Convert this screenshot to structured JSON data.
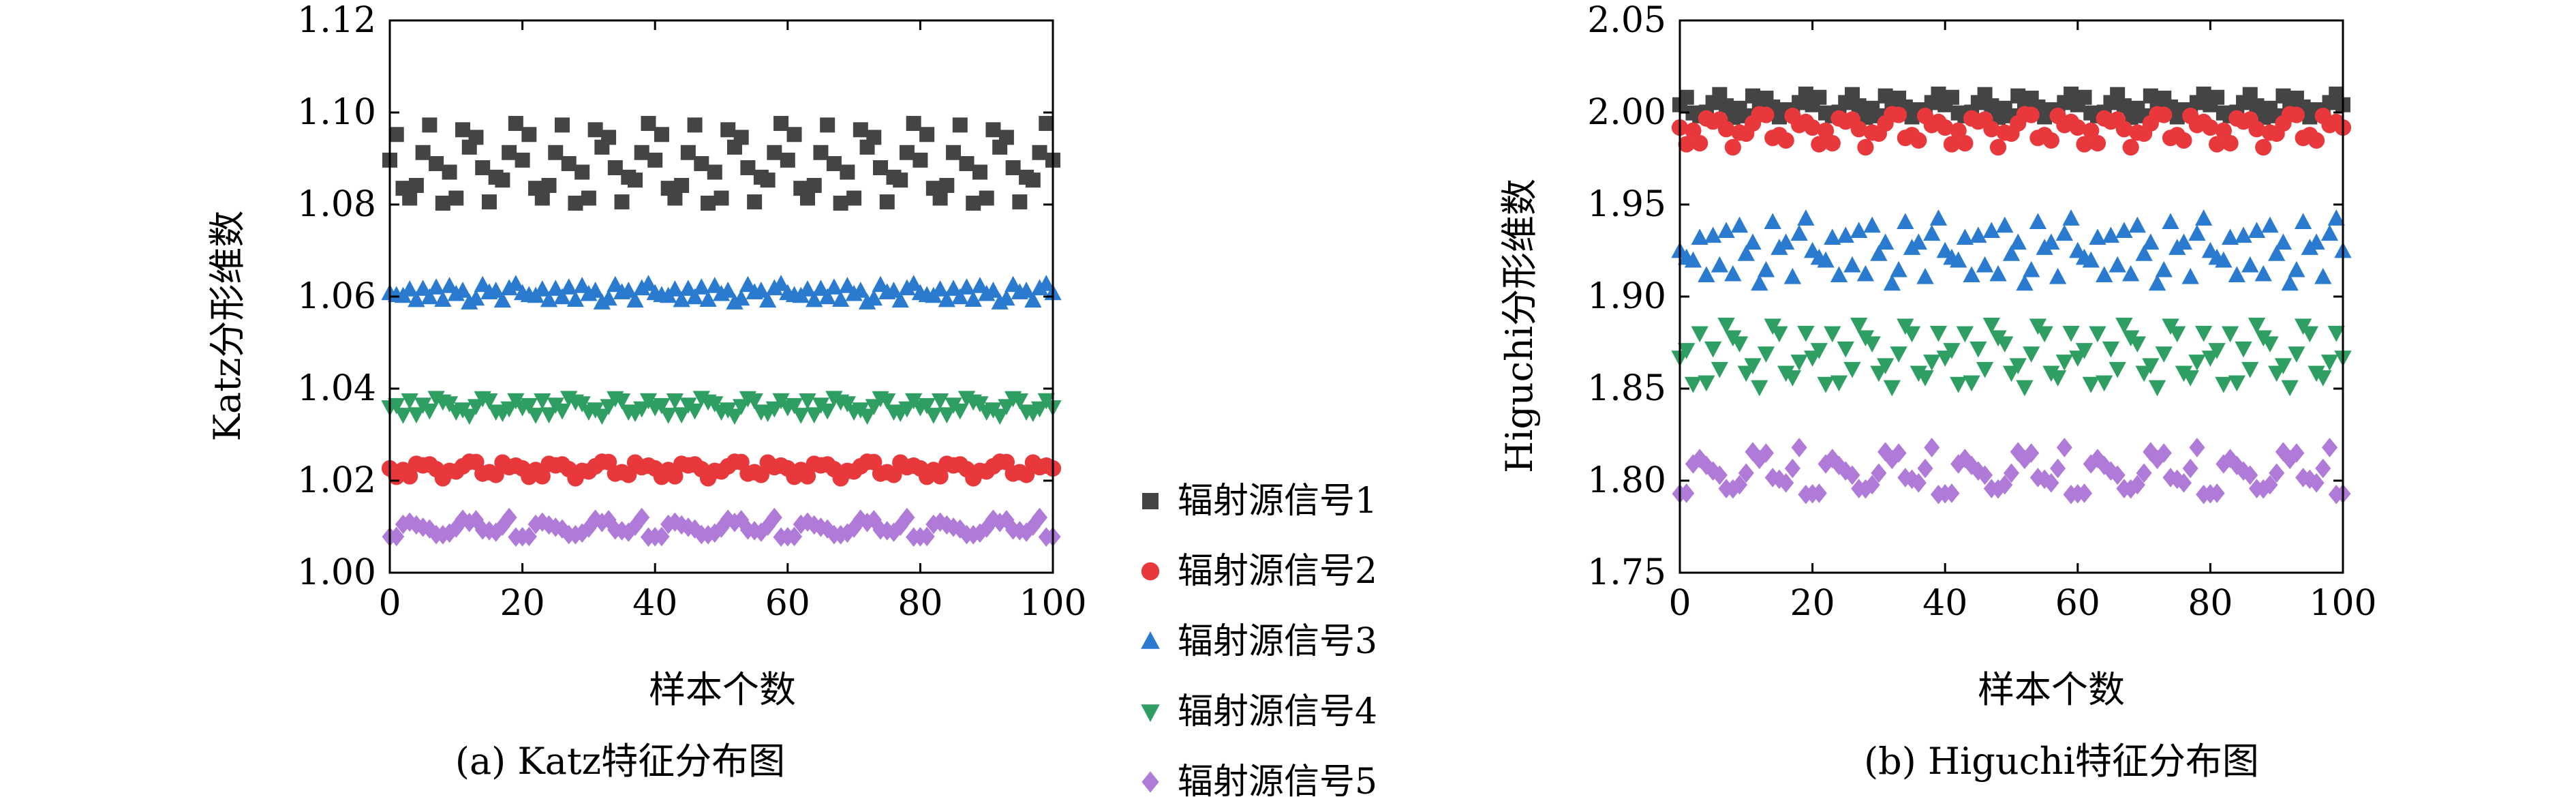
{
  "legend": {
    "placement": "between-charts",
    "items": [
      {
        "label": "辐射源信号1",
        "color": "#444444",
        "marker": "square"
      },
      {
        "label": "辐射源信号2",
        "color": "#e8383b",
        "marker": "circle"
      },
      {
        "label": "辐射源信号3",
        "color": "#2a7bd0",
        "marker": "triangle-up"
      },
      {
        "label": "辐射源信号4",
        "color": "#2e9e62",
        "marker": "triangle-down"
      },
      {
        "label": "辐射源信号5",
        "color": "#b07ad8",
        "marker": "diamond"
      }
    ]
  },
  "chart_data": [
    {
      "type": "scatter",
      "caption": "(a) Katz特征分布图",
      "xlabel": "样本个数",
      "ylabel": "Katz分形维数",
      "xlim": [
        0,
        100
      ],
      "ylim": [
        1.0,
        1.12
      ],
      "xticks": [
        "0",
        "20",
        "40",
        "60",
        "80",
        "100"
      ],
      "yticks": [
        "1.00",
        "1.02",
        "1.04",
        "1.06",
        "1.08",
        "1.10",
        "1.12"
      ],
      "grid": false,
      "series": [
        {
          "name": "辐射源信号1",
          "center": 1.088,
          "spread": 0.011,
          "pattern": [
            0.2,
            -0.6,
            0.9,
            -0.1,
            0.5,
            -0.9,
            0.3,
            0.7,
            -0.4,
            0.1,
            -0.8,
            0.6,
            -0.2,
            1.0,
            -0.5,
            0.4,
            -0.7,
            0.8,
            0.0,
            -0.3
          ]
        },
        {
          "name": "辐射源信号2",
          "center": 1.0225,
          "spread": 0.0022,
          "pattern": [
            0.3,
            -0.5,
            0.8,
            0.1,
            -0.7,
            0.5,
            -0.2,
            0.9,
            -0.4,
            0.2,
            -0.8,
            0.6,
            0.0,
            -0.3,
            0.7,
            -0.6,
            0.4,
            -0.1,
            0.5,
            -0.9
          ]
        },
        {
          "name": "辐射源信号3",
          "center": 1.0605,
          "spread": 0.0025,
          "pattern": [
            -0.2,
            0.6,
            -0.5,
            0.3,
            0.9,
            -0.7,
            0.1,
            0.4,
            -0.3,
            0.8,
            -0.9,
            0.2,
            0.5,
            -0.1,
            -0.6,
            0.7,
            0.0,
            -0.4,
            0.3,
            1.0
          ]
        },
        {
          "name": "辐射源信号4",
          "center": 1.036,
          "spread": 0.0025,
          "pattern": [
            0.1,
            -0.4,
            0.7,
            -0.8,
            0.3,
            0.5,
            -0.2,
            0.9,
            -0.6,
            0.0,
            0.6,
            -0.3,
            0.4,
            -0.9,
            0.8,
            -0.1,
            0.2,
            -0.7,
            1.0,
            -0.5
          ]
        },
        {
          "name": "辐射源信号5",
          "center": 1.0095,
          "spread": 0.0025,
          "pattern": [
            0.4,
            -0.6,
            0.1,
            0.8,
            -0.3,
            -0.8,
            0.5,
            0.2,
            -0.5,
            0.9,
            -0.1,
            0.3,
            -0.9,
            0.6,
            0.0,
            -0.4,
            0.7,
            -0.2,
            1.0,
            -0.7
          ]
        }
      ]
    },
    {
      "type": "scatter",
      "caption": "(b) Higuchi特征分布图",
      "xlabel": "样本个数",
      "ylabel": "Higuchi分形维数",
      "xlim": [
        0,
        100
      ],
      "ylim": [
        1.75,
        2.05
      ],
      "xticks": [
        "0",
        "20",
        "40",
        "60",
        "80",
        "100"
      ],
      "yticks": [
        "1.75",
        "1.80",
        "1.85",
        "1.90",
        "1.95",
        "2.00",
        "2.05"
      ],
      "grid": false,
      "series": [
        {
          "name": "辐射源信号1",
          "center": 2.003,
          "spread": 0.008,
          "pattern": [
            0.2,
            -0.6,
            0.9,
            -0.1,
            0.5,
            -0.9,
            0.3,
            0.7,
            -0.4,
            0.1,
            -0.8,
            0.6,
            -0.2,
            1.0,
            -0.5,
            0.4,
            -0.7,
            0.8,
            0.0,
            -0.3
          ]
        },
        {
          "name": "辐射源信号2",
          "center": 1.991,
          "spread": 0.011,
          "pattern": [
            0.3,
            -0.5,
            0.8,
            0.1,
            -0.7,
            0.5,
            -0.2,
            0.9,
            -0.4,
            0.2,
            -0.8,
            0.6,
            0.0,
            -0.3,
            0.7,
            -0.6,
            0.4,
            -0.1,
            0.5,
            -0.9
          ]
        },
        {
          "name": "辐射源信号3",
          "center": 1.923,
          "spread": 0.022,
          "pattern": [
            -0.2,
            0.6,
            -0.5,
            0.3,
            0.9,
            -0.7,
            0.1,
            0.4,
            -0.3,
            0.8,
            -0.9,
            0.2,
            0.5,
            -0.1,
            -0.6,
            0.7,
            0.0,
            -0.4,
            0.3,
            1.0
          ]
        },
        {
          "name": "辐射源信号4",
          "center": 1.867,
          "spread": 0.022,
          "pattern": [
            0.1,
            -0.4,
            0.7,
            -0.8,
            0.3,
            0.5,
            -0.2,
            0.9,
            -0.6,
            0.0,
            0.6,
            -0.3,
            0.4,
            -0.9,
            0.8,
            -0.1,
            0.2,
            -0.7,
            1.0,
            -0.5
          ]
        },
        {
          "name": "辐射源信号5",
          "center": 1.803,
          "spread": 0.015,
          "pattern": [
            0.4,
            -0.6,
            0.1,
            0.8,
            -0.3,
            -0.8,
            0.5,
            0.2,
            -0.5,
            0.9,
            -0.1,
            0.3,
            -0.9,
            0.6,
            0.0,
            -0.4,
            0.7,
            -0.2,
            1.0,
            -0.7
          ]
        }
      ]
    }
  ]
}
